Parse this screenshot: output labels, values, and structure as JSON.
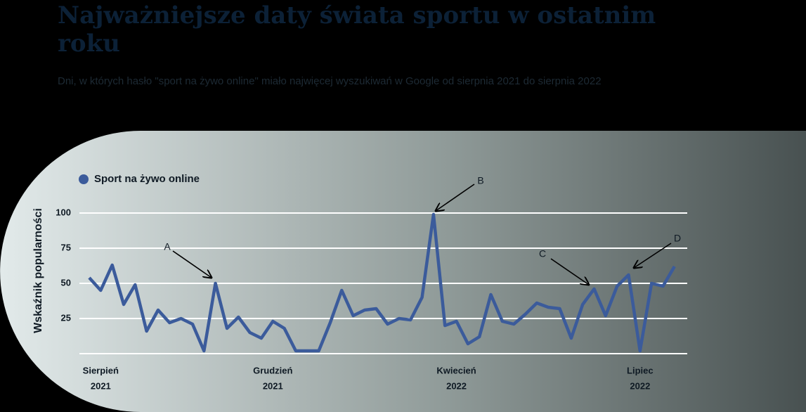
{
  "chart_data": {
    "type": "line",
    "title": "Najważniejsze daty świata sportu w ostatnim roku",
    "subtitle": "Dni, w których hasło \"sport na żywo online\" miało najwięcej wyszukiwań w Google od sierpnia 2021 do sierpnia 2022",
    "y_label": "Wskaźnik popularności",
    "categories": [
      null,
      [
        "Sierpień",
        "2021"
      ],
      null,
      null,
      null,
      null,
      null,
      null,
      null,
      null,
      null,
      null,
      null,
      null,
      null,
      null,
      [
        "Grudzień",
        "2021"
      ],
      null,
      null,
      null,
      null,
      null,
      null,
      null,
      null,
      null,
      null,
      null,
      null,
      null,
      null,
      null,
      [
        "Kwiecień",
        "2022"
      ],
      null,
      null,
      null,
      null,
      null,
      null,
      null,
      null,
      null,
      null,
      null,
      null,
      null,
      null,
      null,
      [
        "Lipiec",
        "2022"
      ],
      null,
      null,
      null
    ],
    "series": [
      {
        "name": "Sport na żywo online",
        "color": "#3b5b9b",
        "values": [
          54,
          45,
          63,
          35,
          49,
          16,
          31,
          22,
          25,
          21,
          2,
          50,
          18,
          26,
          15,
          11,
          23,
          18,
          2,
          2,
          2,
          22,
          45,
          27,
          31,
          32,
          21,
          25,
          24,
          40,
          99,
          20,
          23,
          7,
          12,
          42,
          23,
          21,
          28,
          36,
          33,
          32,
          11,
          35,
          46,
          27,
          48,
          56,
          2,
          50,
          48,
          62
        ]
      }
    ],
    "ylim": [
      0,
      100
    ],
    "yticks": [
      25,
      50,
      75,
      100
    ],
    "grid": true,
    "annotations": [
      "A",
      "B",
      "C",
      "D"
    ]
  }
}
